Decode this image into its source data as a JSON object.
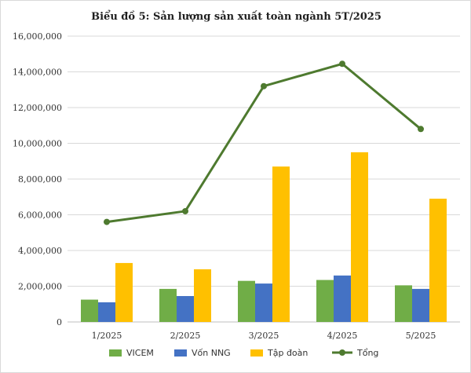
{
  "chart_data": {
    "type": "bar",
    "title": "Biểu đồ 5: Sản lượng sản xuất toàn ngành 5T/2025",
    "xlabel": "",
    "ylabel": "",
    "categories": [
      "1/2025",
      "2/2025",
      "3/2025",
      "4/2025",
      "5/2025"
    ],
    "ylim": [
      0,
      16000000
    ],
    "yticks": [
      "0",
      "2,000,000",
      "4,000,000",
      "6,000,000",
      "8,000,000",
      "10,000,000",
      "12,000,000",
      "14,000,000",
      "16,000,000"
    ],
    "ytick_values": [
      0,
      2000000,
      4000000,
      6000000,
      8000000,
      10000000,
      12000000,
      14000000,
      16000000
    ],
    "grid": true,
    "legend_position": "bottom",
    "series": [
      {
        "name": "VICEM",
        "kind": "bar",
        "color": "#70ad47",
        "values": [
          1250000,
          1850000,
          2300000,
          2350000,
          2050000
        ]
      },
      {
        "name": "Vốn NNG",
        "kind": "bar",
        "color": "#4472c4",
        "values": [
          1100000,
          1450000,
          2150000,
          2600000,
          1850000
        ]
      },
      {
        "name": "Tập đoàn",
        "kind": "bar",
        "color": "#ffc000",
        "values": [
          3300000,
          2950000,
          8700000,
          9500000,
          6900000
        ]
      },
      {
        "name": "Tổng",
        "kind": "line",
        "color": "#4e7a2f",
        "values": [
          5600000,
          6200000,
          13200000,
          14450000,
          10800000
        ]
      }
    ]
  }
}
